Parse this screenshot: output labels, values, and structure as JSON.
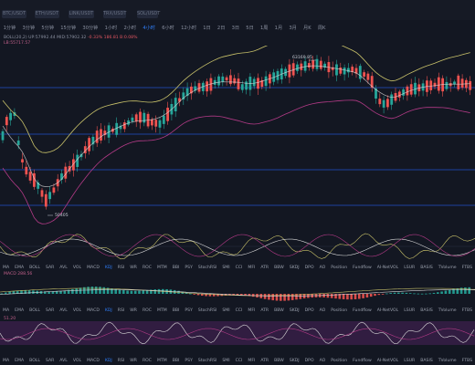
{
  "ticker_strip": {
    "tickers": [
      "BTC/USDT",
      "ETH/USDT",
      "LINK/USDT",
      "TRX/USDT",
      "SOL/USDT"
    ]
  },
  "timeframes": {
    "items": [
      "1分钟",
      "3分钟",
      "5分钟",
      "15分钟",
      "30分钟",
      "1小时",
      "2小时",
      "4小时",
      "6小时",
      "12小时",
      "1日",
      "2日",
      "3日",
      "5日",
      "1周",
      "1月",
      "3月",
      "月K",
      "周K"
    ],
    "active_index": 7
  },
  "indicators": {
    "main_label": "BOLL(20,2) UP:57992.44 MID:57902.32",
    "main_pct": "-0.33% 186.81 B:0.08%",
    "line2": "LB:55717.57"
  },
  "annotations": {
    "high_price": "63169.85",
    "low_price": "50405",
    "macd_label": "MACD 288.56",
    "bottom_label": "51.20"
  },
  "indicator_tabs": [
    "MA",
    "EMA",
    "BOLL",
    "SAR",
    "AVL",
    "VOL",
    "MACD",
    "KDJ",
    "RSI",
    "WR",
    "ROC",
    "MTM",
    "BBI",
    "PSY",
    "StochRSI",
    "SMI",
    "CCI",
    "MFI",
    "ATR",
    "BBW",
    "SKDJ",
    "DPO",
    "AO",
    "Position",
    "Fundflow",
    "AI-NetVOL",
    "LSUR",
    "BASIS",
    "TVolume",
    "FTBS",
    "TTSI",
    "TTMU",
    "AI-BSI",
    "MLR",
    "AI-FDI",
    "AI-LI"
  ],
  "active_tab": "KDJ",
  "colors": {
    "background": "#131722",
    "up": "#26a69a",
    "down": "#ef5350",
    "boll_upper": "#c9c26a",
    "boll_mid": "#d9d9d9",
    "boll_lower": "#b23a86",
    "hline": "#2962ff",
    "accent": "#2f7df6"
  }
}
